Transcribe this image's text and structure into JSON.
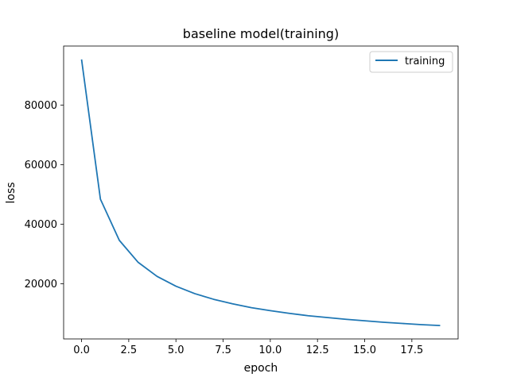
{
  "chart_data": {
    "type": "line",
    "title": "baseline model(training)",
    "xlabel": "epoch",
    "ylabel": "loss",
    "xlim": [
      -0.95,
      19.95
    ],
    "ylim": [
      1500,
      99800
    ],
    "x_ticks": [
      0.0,
      2.5,
      5.0,
      7.5,
      10.0,
      12.5,
      15.0,
      17.5
    ],
    "x_tick_labels": [
      "0.0",
      "2.5",
      "5.0",
      "7.5",
      "10.0",
      "12.5",
      "15.0",
      "17.5"
    ],
    "y_ticks": [
      20000,
      40000,
      60000,
      80000
    ],
    "y_tick_labels": [
      "20000",
      "40000",
      "60000",
      "80000"
    ],
    "grid": false,
    "legend_position": "top-right",
    "series": [
      {
        "name": "training",
        "color": "#1f77b4",
        "x": [
          0,
          1,
          2,
          3,
          4,
          5,
          6,
          7,
          8,
          9,
          10,
          11,
          12,
          13,
          14,
          15,
          16,
          17,
          18,
          19
        ],
        "y": [
          95300,
          48400,
          34600,
          27200,
          22500,
          19200,
          16700,
          14800,
          13300,
          12000,
          11000,
          10100,
          9300,
          8700,
          8100,
          7600,
          7100,
          6700,
          6300,
          6000
        ]
      }
    ]
  }
}
